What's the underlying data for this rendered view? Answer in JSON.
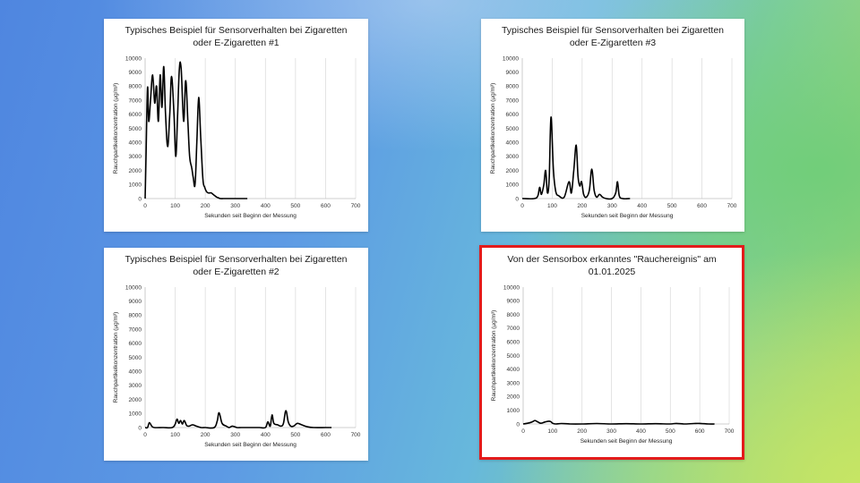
{
  "chart_data": [
    {
      "type": "line",
      "title_lines": [
        "Typisches Beispiel für Sensorverhalten bei Zigaretten",
        "oder E-Zigaretten #1"
      ],
      "xlabel": "Sekunden seit Beginn der Messung",
      "ylabel": "Rauchpartikelkonzentration (µg/m³)",
      "xlim": [
        0,
        700
      ],
      "ylim": [
        0,
        10000
      ],
      "xticks": [
        0,
        100,
        200,
        300,
        400,
        500,
        600,
        700
      ],
      "yticks": [
        0,
        1000,
        2000,
        3000,
        4000,
        5000,
        6000,
        7000,
        8000,
        9000,
        10000
      ],
      "grid": "vertical",
      "highlighted": false,
      "x": [
        0,
        3,
        8,
        12,
        18,
        25,
        32,
        38,
        44,
        50,
        56,
        62,
        68,
        75,
        82,
        88,
        96,
        102,
        108,
        114,
        120,
        128,
        135,
        142,
        148,
        155,
        160,
        166,
        172,
        178,
        185,
        192,
        198,
        204,
        210,
        215,
        220,
        226,
        232,
        238,
        244,
        250,
        260,
        270,
        280,
        295,
        310,
        320,
        340
      ],
      "y": [
        0,
        3000,
        7900,
        5500,
        7000,
        8800,
        6800,
        8000,
        5500,
        8800,
        6500,
        9400,
        6000,
        3700,
        6000,
        8700,
        6000,
        3000,
        6000,
        9300,
        9200,
        5500,
        8400,
        5500,
        3000,
        2200,
        1500,
        1000,
        4000,
        7200,
        4300,
        1400,
        800,
        500,
        400,
        400,
        400,
        300,
        200,
        100,
        50,
        0,
        0,
        0,
        0,
        0,
        0,
        0,
        0
      ]
    },
    {
      "type": "line",
      "title_lines": [
        "Typisches Beispiel für Sensorverhalten bei Zigaretten",
        "oder E-Zigaretten #3"
      ],
      "xlabel": "Sekunden seit Beginn der Messung",
      "ylabel": "Rauchpartikelkonzentration (µg/m³)",
      "xlim": [
        0,
        700
      ],
      "ylim": [
        0,
        10000
      ],
      "xticks": [
        0,
        100,
        200,
        300,
        400,
        500,
        600,
        700
      ],
      "yticks": [
        0,
        1000,
        2000,
        3000,
        4000,
        5000,
        6000,
        7000,
        8000,
        9000,
        10000
      ],
      "grid": "vertical",
      "highlighted": false,
      "x": [
        0,
        40,
        52,
        58,
        64,
        72,
        78,
        84,
        90,
        96,
        104,
        112,
        122,
        140,
        156,
        164,
        172,
        180,
        186,
        192,
        198,
        205,
        214,
        224,
        232,
        240,
        248,
        258,
        268,
        280,
        300,
        312,
        318,
        324,
        335,
        360
      ],
      "y": [
        0,
        0,
        200,
        800,
        300,
        1000,
        2000,
        400,
        1500,
        5800,
        2000,
        500,
        200,
        100,
        1200,
        400,
        2000,
        3800,
        1600,
        900,
        1200,
        300,
        100,
        600,
        2100,
        600,
        100,
        300,
        100,
        0,
        0,
        400,
        1200,
        200,
        0,
        0
      ]
    },
    {
      "type": "line",
      "title_lines": [
        "Typisches Beispiel für Sensorverhalten bei Zigaretten",
        "oder E-Zigaretten #2"
      ],
      "xlabel": "Sekunden seit Beginn der Messung",
      "ylabel": "Rauchpartikelkonzentration (µg/m³)",
      "xlim": [
        0,
        700
      ],
      "ylim": [
        0,
        10000
      ],
      "xticks": [
        0,
        100,
        200,
        300,
        400,
        500,
        600,
        700
      ],
      "yticks": [
        0,
        1000,
        2000,
        3000,
        4000,
        5000,
        6000,
        7000,
        8000,
        9000,
        10000
      ],
      "grid": "vertical",
      "highlighted": false,
      "x": [
        0,
        8,
        14,
        22,
        30,
        60,
        90,
        100,
        106,
        112,
        118,
        124,
        130,
        138,
        146,
        158,
        170,
        186,
        200,
        230,
        240,
        246,
        256,
        270,
        280,
        290,
        305,
        320,
        350,
        380,
        400,
        408,
        416,
        422,
        428,
        440,
        452,
        460,
        468,
        476,
        484,
        494,
        506,
        520,
        540,
        560,
        600,
        620
      ],
      "y": [
        0,
        0,
        350,
        100,
        0,
        0,
        0,
        250,
        600,
        300,
        500,
        250,
        500,
        150,
        100,
        200,
        100,
        0,
        0,
        0,
        500,
        1050,
        300,
        100,
        0,
        100,
        0,
        0,
        0,
        0,
        0,
        400,
        100,
        900,
        300,
        200,
        100,
        300,
        1200,
        400,
        100,
        100,
        300,
        200,
        50,
        0,
        0,
        0
      ]
    },
    {
      "type": "line",
      "title_lines": [
        "Von der Sensorbox erkanntes \"Rauchereignis\" am",
        "01.01.2025"
      ],
      "xlabel": "Sekunden seit Beginn der Messung",
      "ylabel": "Rauchpartikelkonzentration (µg/m³)",
      "xlim": [
        0,
        700
      ],
      "ylim": [
        0,
        10000
      ],
      "xticks": [
        0,
        100,
        200,
        300,
        400,
        500,
        600,
        700
      ],
      "yticks": [
        0,
        1000,
        2000,
        3000,
        4000,
        5000,
        6000,
        7000,
        8000,
        9000,
        10000
      ],
      "grid": "vertical",
      "highlighted": true,
      "highlight_color": "#e31b1b",
      "x": [
        0,
        15,
        30,
        40,
        50,
        60,
        75,
        88,
        95,
        100,
        110,
        130,
        160,
        200,
        250,
        300,
        350,
        400,
        450,
        500,
        520,
        550,
        580,
        600,
        630,
        650
      ],
      "y": [
        0,
        50,
        150,
        250,
        150,
        50,
        150,
        200,
        150,
        50,
        0,
        30,
        0,
        0,
        30,
        0,
        20,
        0,
        20,
        0,
        40,
        0,
        30,
        40,
        0,
        0
      ]
    }
  ]
}
